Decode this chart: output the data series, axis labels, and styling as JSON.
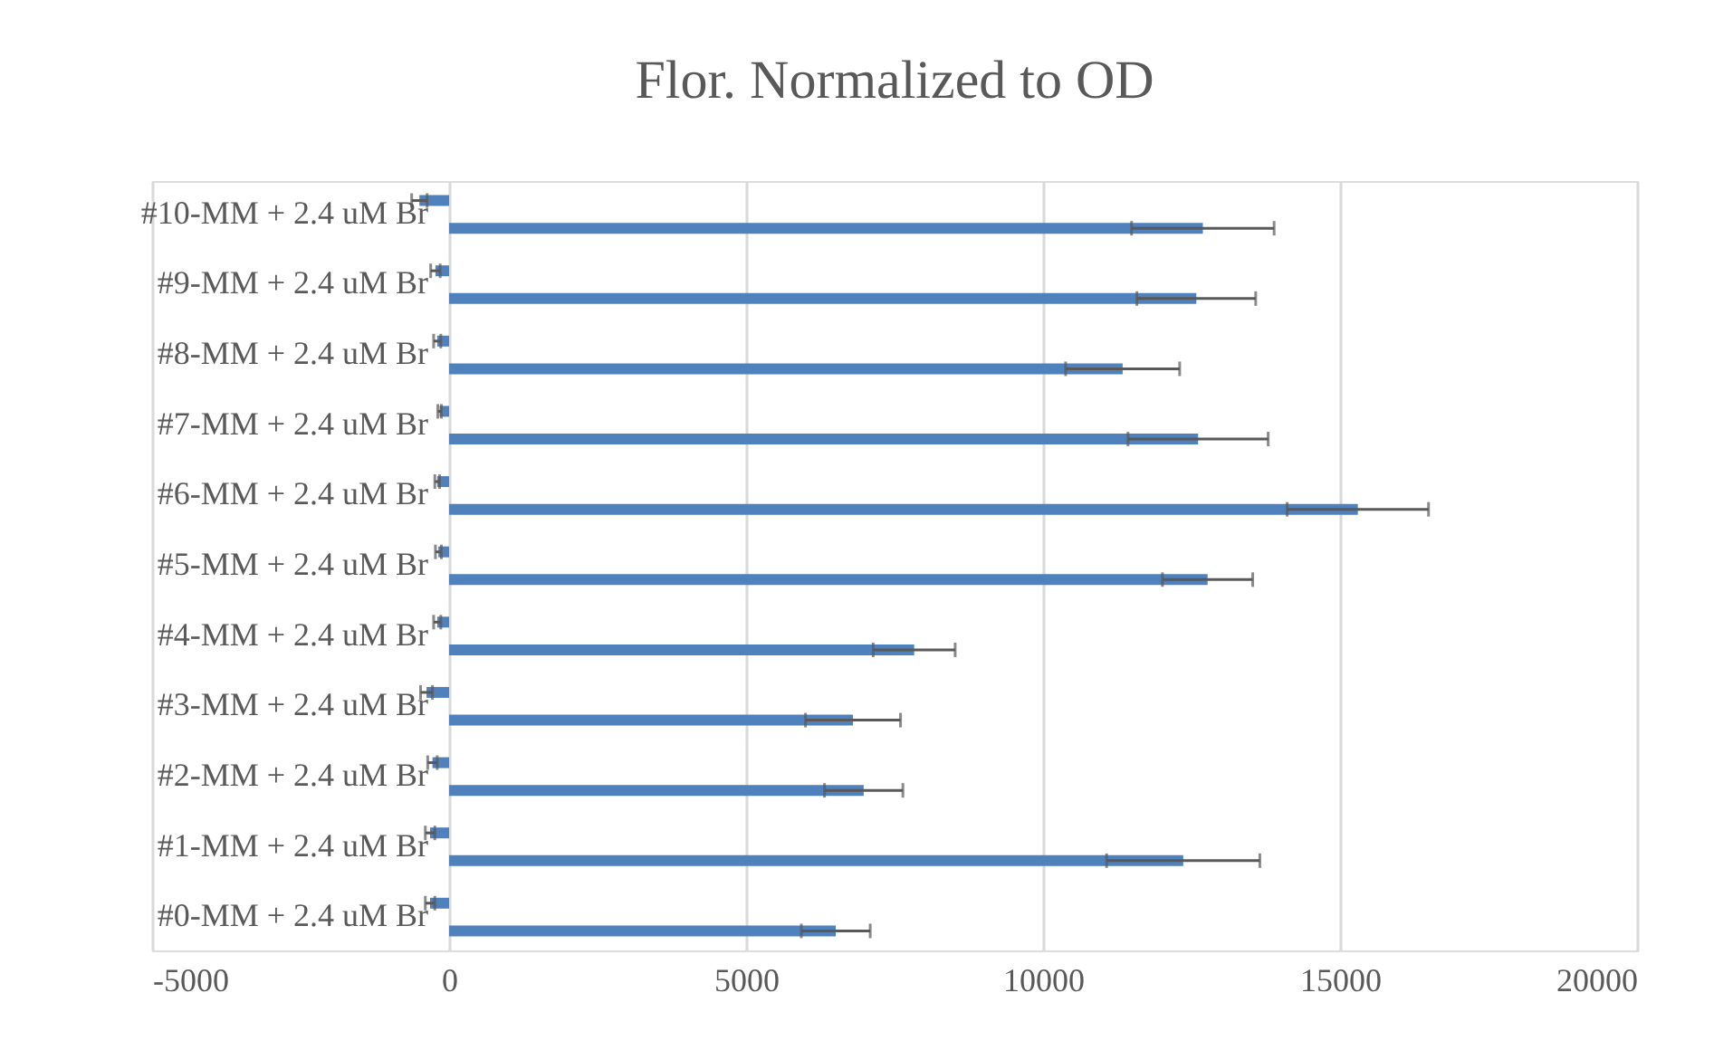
{
  "chart_data": {
    "type": "bar",
    "orientation": "horizontal",
    "title": "Flor. Normalized to OD",
    "categories": [
      "#10-MM + 2.4 uM Br",
      "#9-MM + 2.4 uM Br",
      "#8-MM + 2.4 uM Br",
      "#7-MM + 2.4 uM Br",
      "#6-MM + 2.4 uM Br",
      "#5-MM + 2.4 uM Br",
      "#4-MM + 2.4 uM Br",
      "#3-MM + 2.4 uM Br",
      "#2-MM + 2.4 uM Br",
      "#1-MM + 2.4 uM Br",
      "#0-MM + 2.4 uM Br"
    ],
    "series": [
      {
        "color": "#4f81bd",
        "values": [
          -500,
          -230,
          -200,
          -160,
          -200,
          -180,
          -200,
          -380,
          -280,
          -320,
          -320
        ],
        "errors": [
          130,
          80,
          60,
          30,
          40,
          50,
          60,
          100,
          80,
          80,
          80
        ]
      },
      {
        "color": "#4f81bd",
        "values": [
          12690,
          12580,
          11340,
          12610,
          15300,
          12770,
          7830,
          6800,
          6980,
          12360,
          6510
        ],
        "errors": [
          1200,
          1000,
          960,
          1180,
          1190,
          760,
          690,
          800,
          660,
          1290,
          580
        ]
      }
    ],
    "xlim": [
      -5000,
      20000
    ],
    "xticks": [
      -5000,
      0,
      5000,
      10000,
      15000,
      20000
    ],
    "grid": "x"
  }
}
